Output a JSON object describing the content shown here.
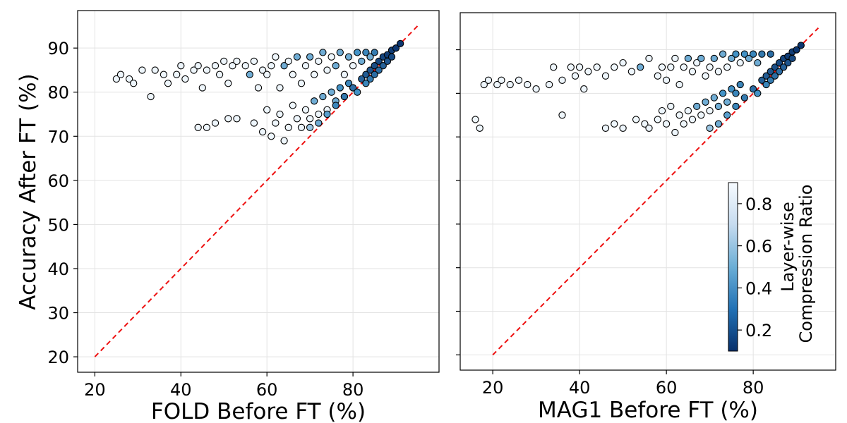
{
  "chart_data": [
    {
      "type": "scatter",
      "panel": "left",
      "xlabel": "FOLD Before FT (%)",
      "ylabel": "Accuracy After FT (%)",
      "xlim": [
        16,
        100
      ],
      "ylim": [
        16.5,
        98.5
      ],
      "xticks": [
        20,
        40,
        60,
        80
      ],
      "yticks": [
        20,
        30,
        40,
        50,
        60,
        70,
        80,
        90
      ],
      "grid": true,
      "reference_line": {
        "style": "dashed",
        "color": "#ee1111",
        "from": [
          20,
          20
        ],
        "to": [
          95,
          95
        ]
      },
      "series": [
        {
          "name": "upper band (x, y, compression ratio)",
          "points": [
            [
              25,
              83,
              0.88
            ],
            [
              26,
              84,
              0.88
            ],
            [
              28,
              83,
              0.88
            ],
            [
              29,
              82,
              0.88
            ],
            [
              31,
              85,
              0.88
            ],
            [
              33,
              79,
              0.88
            ],
            [
              34,
              85,
              0.88
            ],
            [
              36,
              84,
              0.88
            ],
            [
              37,
              82,
              0.88
            ],
            [
              39,
              84,
              0.88
            ],
            [
              40,
              86,
              0.88
            ],
            [
              41,
              83,
              0.88
            ],
            [
              43,
              85,
              0.88
            ],
            [
              44,
              86,
              0.88
            ],
            [
              45,
              81,
              0.88
            ],
            [
              46,
              85,
              0.88
            ],
            [
              48,
              86,
              0.88
            ],
            [
              49,
              84,
              0.88
            ],
            [
              50,
              87,
              0.88
            ],
            [
              51,
              82,
              0.88
            ],
            [
              52,
              86,
              0.88
            ],
            [
              53,
              87,
              0.88
            ],
            [
              55,
              86,
              0.88
            ],
            [
              56,
              84,
              0.6
            ],
            [
              57,
              87,
              0.88
            ],
            [
              58,
              81,
              0.88
            ],
            [
              59,
              85,
              0.88
            ],
            [
              60,
              84,
              0.88
            ],
            [
              61,
              86,
              0.88
            ],
            [
              62,
              88,
              0.88
            ],
            [
              63,
              81,
              0.88
            ],
            [
              64,
              86,
              0.6
            ],
            [
              65,
              87,
              0.88
            ],
            [
              66,
              84,
              0.88
            ],
            [
              67,
              88,
              0.6
            ],
            [
              68,
              82,
              0.88
            ],
            [
              69,
              86,
              0.88
            ],
            [
              70,
              88,
              0.6
            ],
            [
              71,
              84,
              0.88
            ],
            [
              72,
              87,
              0.88
            ],
            [
              73,
              89,
              0.6
            ],
            [
              74,
              85,
              0.88
            ],
            [
              75,
              88,
              0.88
            ],
            [
              76,
              86,
              0.6
            ],
            [
              77,
              89,
              0.6
            ],
            [
              78,
              84,
              0.88
            ],
            [
              79,
              88,
              0.6
            ],
            [
              80,
              86,
              0.88
            ],
            [
              81,
              89,
              0.5
            ],
            [
              82,
              87,
              0.6
            ],
            [
              83,
              89,
              0.45
            ],
            [
              84,
              88,
              0.6
            ],
            [
              85,
              89,
              0.4
            ]
          ]
        },
        {
          "name": "lower band (x, y, compression ratio)",
          "points": [
            [
              44,
              72,
              0.88
            ],
            [
              46,
              72,
              0.88
            ],
            [
              48,
              73,
              0.88
            ],
            [
              51,
              74,
              0.88
            ],
            [
              53,
              74,
              0.88
            ],
            [
              57,
              73,
              0.88
            ],
            [
              59,
              71,
              0.88
            ],
            [
              60,
              76,
              0.88
            ],
            [
              61,
              70,
              0.88
            ],
            [
              62,
              73,
              0.88
            ],
            [
              63,
              75,
              0.88
            ],
            [
              64,
              69,
              0.88
            ],
            [
              65,
              72,
              0.88
            ],
            [
              66,
              77,
              0.88
            ],
            [
              67,
              74,
              0.88
            ],
            [
              68,
              72,
              0.88
            ],
            [
              69,
              76,
              0.88
            ],
            [
              70,
              74,
              0.88
            ],
            [
              71,
              78,
              0.6
            ],
            [
              72,
              75,
              0.88
            ],
            [
              73,
              79,
              0.6
            ],
            [
              74,
              76,
              0.88
            ],
            [
              75,
              80,
              0.6
            ],
            [
              76,
              78,
              0.6
            ],
            [
              77,
              81,
              0.5
            ],
            [
              78,
              79,
              0.6
            ],
            [
              79,
              82,
              0.45
            ],
            [
              80,
              81,
              0.5
            ]
          ]
        },
        {
          "name": "diagonal cluster (x, y, compression ratio)",
          "points": [
            [
              70,
              72,
              0.7
            ],
            [
              72,
              73,
              0.6
            ],
            [
              74,
              75,
              0.55
            ],
            [
              76,
              77,
              0.45
            ],
            [
              78,
              79,
              0.4
            ],
            [
              80,
              81,
              0.35
            ],
            [
              82,
              83,
              0.3
            ],
            [
              83,
              84,
              0.28
            ],
            [
              84,
              85,
              0.25
            ],
            [
              85,
              86,
              0.22
            ],
            [
              86,
              87,
              0.2
            ],
            [
              87,
              88,
              0.18
            ],
            [
              88,
              88.5,
              0.15
            ],
            [
              89,
              89.5,
              0.15
            ],
            [
              90,
              90,
              0.12
            ],
            [
              91,
              91,
              0.12
            ],
            [
              87,
              86,
              0.3
            ],
            [
              86,
              85,
              0.35
            ],
            [
              84,
              83,
              0.4
            ],
            [
              88,
              87,
              0.25
            ],
            [
              89,
              88,
              0.2
            ],
            [
              85,
              84,
              0.35
            ],
            [
              83,
              82,
              0.45
            ],
            [
              81,
              80,
              0.5
            ]
          ]
        }
      ]
    },
    {
      "type": "scatter",
      "panel": "right",
      "xlabel": "MAG1 Before FT (%)",
      "ylabel": "",
      "xlim": [
        12.5,
        99
      ],
      "ylim": [
        16.5,
        98.5
      ],
      "xticks": [
        20,
        40,
        60,
        80
      ],
      "yticks": [
        20,
        30,
        40,
        50,
        60,
        70,
        80,
        90
      ],
      "grid": true,
      "reference_line": {
        "style": "dashed",
        "color": "#ee1111",
        "from": [
          20,
          20
        ],
        "to": [
          95,
          95
        ]
      },
      "series": [
        {
          "name": "upper band (x, y, compression ratio)",
          "points": [
            [
              18,
              82,
              0.88
            ],
            [
              19,
              83,
              0.88
            ],
            [
              21,
              82,
              0.88
            ],
            [
              22,
              83,
              0.88
            ],
            [
              24,
              82,
              0.88
            ],
            [
              26,
              83,
              0.88
            ],
            [
              28,
              82,
              0.88
            ],
            [
              30,
              81,
              0.88
            ],
            [
              33,
              82,
              0.88
            ],
            [
              34,
              86,
              0.88
            ],
            [
              36,
              83,
              0.88
            ],
            [
              38,
              86,
              0.88
            ],
            [
              39,
              84,
              0.88
            ],
            [
              40,
              86,
              0.88
            ],
            [
              41,
              81,
              0.88
            ],
            [
              42,
              85,
              0.88
            ],
            [
              44,
              86,
              0.88
            ],
            [
              46,
              84,
              0.88
            ],
            [
              48,
              86,
              0.88
            ],
            [
              50,
              87,
              0.88
            ],
            [
              52,
              85,
              0.88
            ],
            [
              54,
              86,
              0.6
            ],
            [
              56,
              88,
              0.88
            ],
            [
              58,
              84,
              0.88
            ],
            [
              59,
              86,
              0.88
            ],
            [
              60,
              83,
              0.88
            ],
            [
              61,
              86,
              0.88
            ],
            [
              62,
              88,
              0.88
            ],
            [
              63,
              82,
              0.88
            ],
            [
              64,
              86,
              0.88
            ],
            [
              65,
              88,
              0.6
            ],
            [
              66,
              85,
              0.88
            ],
            [
              67,
              87,
              0.88
            ],
            [
              68,
              88,
              0.6
            ],
            [
              69,
              84,
              0.88
            ],
            [
              70,
              86,
              0.88
            ],
            [
              71,
              88,
              0.6
            ],
            [
              72,
              85,
              0.88
            ],
            [
              73,
              89,
              0.6
            ],
            [
              74,
              86,
              0.88
            ],
            [
              75,
              88,
              0.6
            ],
            [
              76,
              89,
              0.5
            ],
            [
              77,
              87,
              0.88
            ],
            [
              78,
              89,
              0.5
            ],
            [
              79,
              88,
              0.6
            ],
            [
              80,
              89,
              0.45
            ],
            [
              81,
              87,
              0.6
            ],
            [
              82,
              89,
              0.4
            ],
            [
              84,
              89,
              0.35
            ]
          ]
        },
        {
          "name": "lower band (x, y, compression ratio)",
          "points": [
            [
              16,
              74,
              0.88
            ],
            [
              17,
              72,
              0.88
            ],
            [
              36,
              75,
              0.88
            ],
            [
              46,
              72,
              0.88
            ],
            [
              48,
              73,
              0.88
            ],
            [
              50,
              72,
              0.88
            ],
            [
              53,
              74,
              0.88
            ],
            [
              55,
              73,
              0.88
            ],
            [
              56,
              72,
              0.88
            ],
            [
              58,
              74,
              0.88
            ],
            [
              59,
              76,
              0.88
            ],
            [
              60,
              73,
              0.88
            ],
            [
              61,
              77,
              0.88
            ],
            [
              62,
              71,
              0.88
            ],
            [
              63,
              75,
              0.88
            ],
            [
              64,
              73,
              0.88
            ],
            [
              65,
              76,
              0.88
            ],
            [
              66,
              74,
              0.88
            ],
            [
              67,
              77,
              0.6
            ],
            [
              68,
              75,
              0.88
            ],
            [
              69,
              78,
              0.6
            ],
            [
              70,
              76,
              0.88
            ],
            [
              71,
              79,
              0.6
            ],
            [
              72,
              77,
              0.6
            ],
            [
              73,
              80,
              0.5
            ],
            [
              74,
              78,
              0.6
            ],
            [
              75,
              81,
              0.5
            ],
            [
              76,
              80,
              0.45
            ],
            [
              77,
              82,
              0.45
            ]
          ]
        },
        {
          "name": "diagonal cluster (x, y, compression ratio)",
          "points": [
            [
              70,
              72,
              0.7
            ],
            [
              72,
              73,
              0.6
            ],
            [
              74,
              75,
              0.55
            ],
            [
              76,
              77,
              0.45
            ],
            [
              78,
              79,
              0.4
            ],
            [
              80,
              81,
              0.35
            ],
            [
              82,
              83,
              0.3
            ],
            [
              83,
              84,
              0.28
            ],
            [
              84,
              85,
              0.25
            ],
            [
              85,
              86,
              0.22
            ],
            [
              86,
              87,
              0.2
            ],
            [
              87,
              88,
              0.18
            ],
            [
              88,
              88.5,
              0.15
            ],
            [
              89,
              89.5,
              0.15
            ],
            [
              90,
              90,
              0.12
            ],
            [
              91,
              91,
              0.12
            ],
            [
              87,
              86,
              0.3
            ],
            [
              86,
              85,
              0.35
            ],
            [
              84,
              83,
              0.4
            ],
            [
              88,
              87,
              0.25
            ],
            [
              89,
              88,
              0.2
            ],
            [
              85,
              84,
              0.35
            ],
            [
              83,
              82,
              0.45
            ],
            [
              81,
              80,
              0.5
            ]
          ]
        }
      ]
    }
  ],
  "colorbar": {
    "title_line1": "Layer-wise",
    "title_line2": "Compression Ratio",
    "range": [
      0.1,
      0.9
    ],
    "ticks": [
      0.2,
      0.4,
      0.6,
      0.8
    ],
    "colors": {
      "low": "#08306b",
      "mid": "#4292c6",
      "high": "#f7fbff"
    }
  },
  "colors": {
    "reference_line": "#ee1111",
    "marker_edge": "#000000"
  }
}
